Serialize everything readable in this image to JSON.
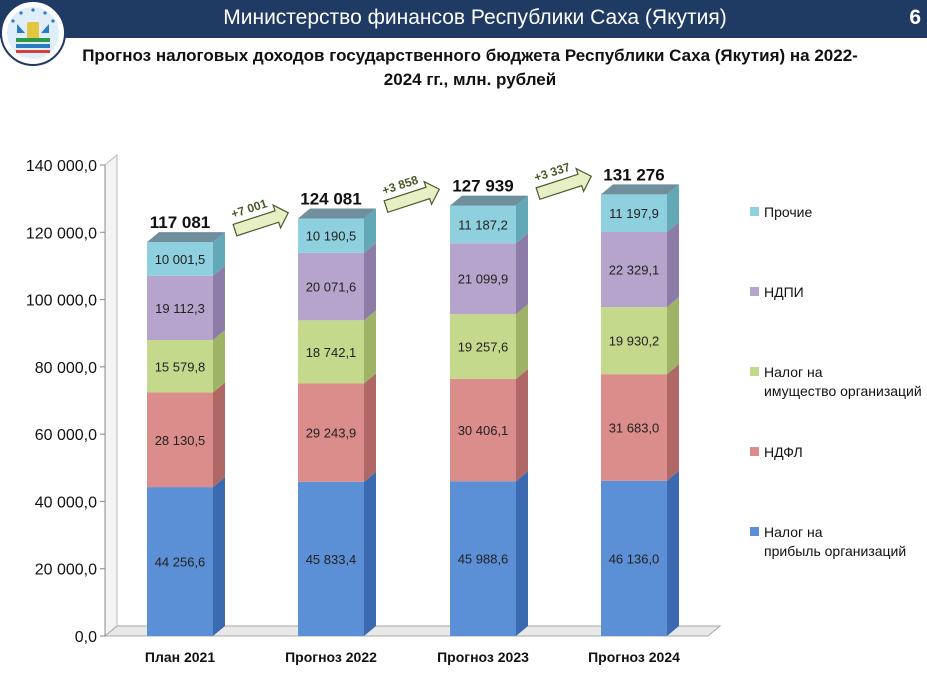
{
  "header": {
    "title": "Министерство финансов Республики Саха (Якутия)",
    "page_number": "6"
  },
  "chart_data": {
    "type": "bar",
    "stacked": true,
    "title": "Прогноз налоговых доходов государственного бюджета Республики Саха (Якутия) на 2022-2024 гг., млн. рублей",
    "categories": [
      "План 2021",
      "Прогноз 2022",
      "Прогноз 2023",
      "Прогноз 2024"
    ],
    "series": [
      {
        "name": "Налог на прибыль организаций",
        "color": "#5b8fd6",
        "side": "#3c6ab0",
        "values": [
          44256.6,
          45833.4,
          45988.6,
          46136.0
        ],
        "labels": [
          "44 256,6",
          "45 833,4",
          "45 988,6",
          "46 136,0"
        ]
      },
      {
        "name": "НДФЛ",
        "color": "#db8d8b",
        "side": "#b06866",
        "values": [
          28130.5,
          29243.9,
          30406.1,
          31683.0
        ],
        "labels": [
          "28 130,5",
          "29 243,9",
          "30 406,1",
          "31 683,0"
        ]
      },
      {
        "name": "Налог на имущество организаций",
        "color": "#c5d98d",
        "side": "#9fb366",
        "values": [
          15579.8,
          18742.1,
          19257.6,
          19930.2
        ],
        "labels": [
          "15 579,8",
          "18 742,1",
          "19 257,6",
          "19 930,2"
        ]
      },
      {
        "name": "НДПИ",
        "color": "#b6a4cd",
        "side": "#8e7ca8",
        "values": [
          19112.3,
          20071.6,
          21099.9,
          22329.1
        ],
        "labels": [
          "19 112,3",
          "20 071,6",
          "21 099,9",
          "22 329,1"
        ]
      },
      {
        "name": "Прочие",
        "color": "#8ed0de",
        "side": "#63a8b7",
        "values": [
          10001.5,
          10190.5,
          11187.2,
          11197.9
        ],
        "labels": [
          "10 001,5",
          "10 190,5",
          "11 187,2",
          "11 197,9"
        ]
      }
    ],
    "totals": [
      "117 081",
      "124 081",
      "127 939",
      "131 276"
    ],
    "growth": [
      "+7 001",
      "+3 858",
      "+3 337"
    ],
    "ylim": [
      0,
      140000
    ],
    "yticks": [
      0,
      20000,
      40000,
      60000,
      80000,
      100000,
      120000,
      140000
    ],
    "ytick_labels": [
      "0,0",
      "20 000,0",
      "40 000,0",
      "60 000,0",
      "80 000,0",
      "100 000,0",
      "120 000,0",
      "140 000,0"
    ],
    "legend_position": "right",
    "grid": false
  }
}
